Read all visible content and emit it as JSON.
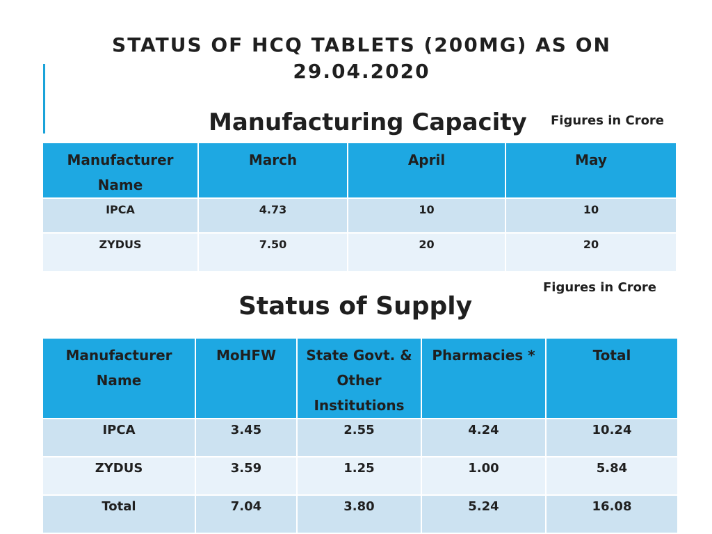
{
  "slide": {
    "title": "STATUS OF HCQ TABLETS (200MG) AS ON 29.04.2020"
  },
  "manufacturing_capacity": {
    "heading": "Manufacturing Capacity",
    "unit_note": "Figures in Crore",
    "columns": [
      "Manufacturer Name",
      "March",
      "April",
      "May"
    ],
    "rows": [
      [
        "IPCA",
        "4.73",
        "10",
        "10"
      ],
      [
        "ZYDUS",
        "7.50",
        "20",
        "20"
      ]
    ]
  },
  "status_of_supply": {
    "heading": "Status of Supply",
    "unit_note": "Figures in Crore",
    "columns": [
      "Manufacturer Name",
      "MoHFW",
      "State Govt. & Other Institutions",
      "Pharmacies *",
      "Total"
    ],
    "rows": [
      [
        "IPCA",
        "3.45",
        "2.55",
        "4.24",
        "10.24"
      ],
      [
        "ZYDUS",
        "3.59",
        "1.25",
        "1.00",
        "5.84"
      ],
      [
        "Total",
        "7.04",
        "3.80",
        "5.24",
        "16.08"
      ]
    ]
  },
  "colors": {
    "header_fill": "#1ea8e2",
    "row_fill_odd": "#cce2f1",
    "row_fill_even": "#e8f2fa",
    "accent_line": "#1aa3d9"
  }
}
